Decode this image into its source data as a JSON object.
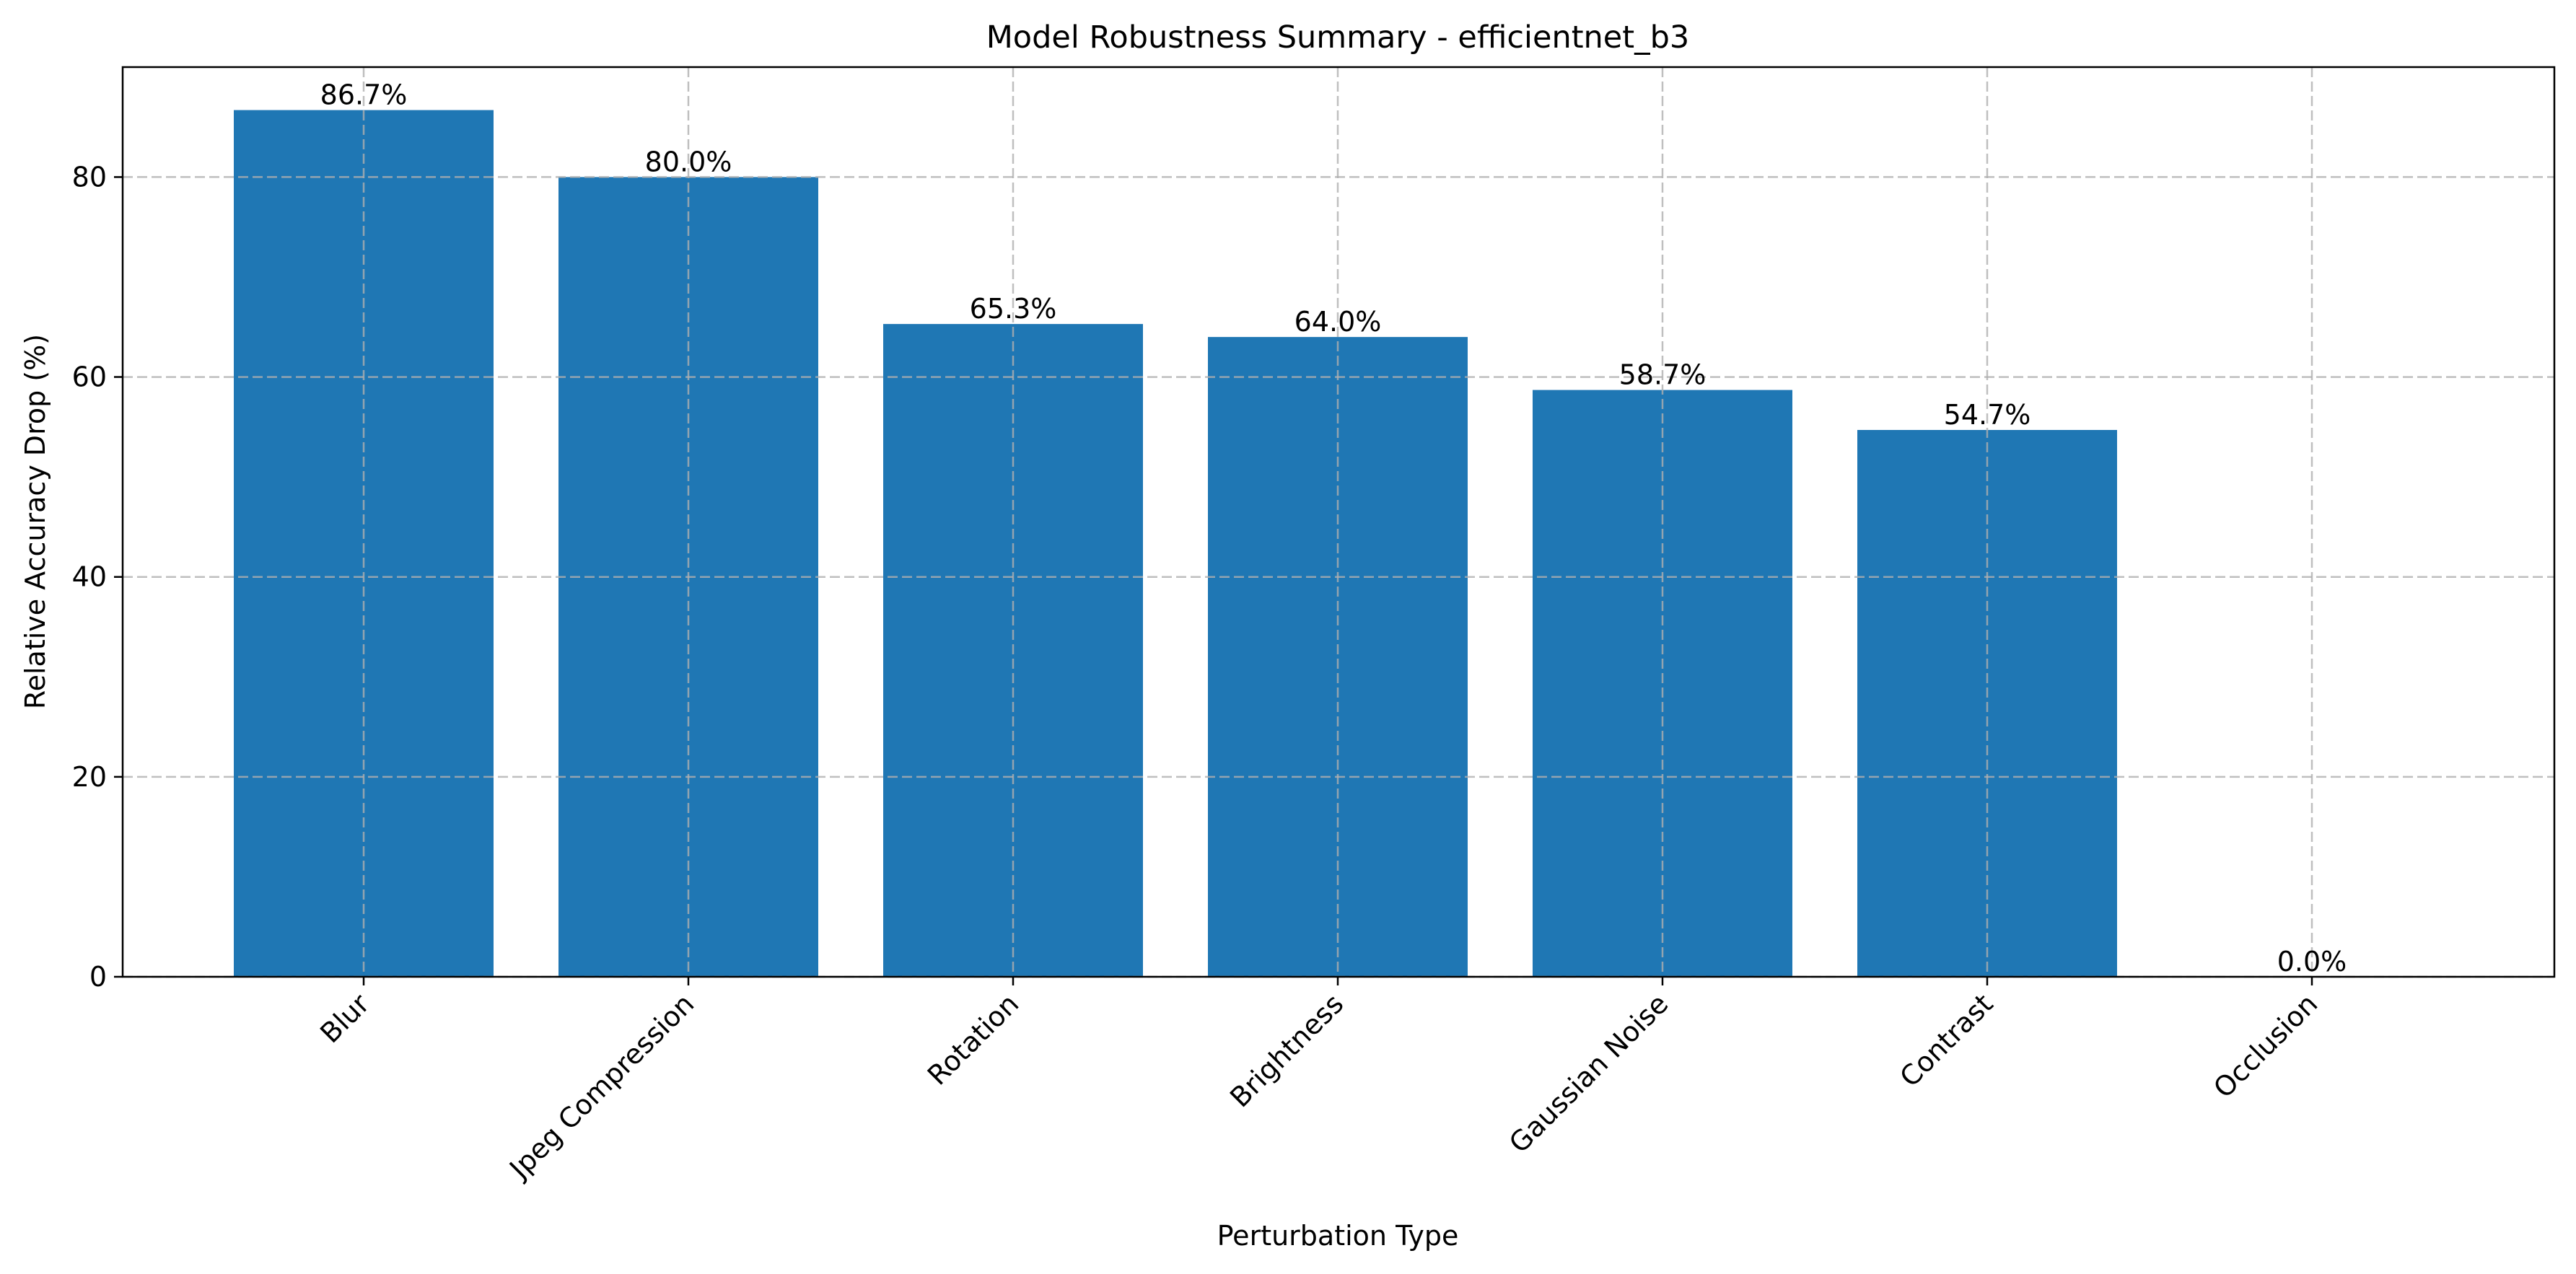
{
  "chart_data": {
    "type": "bar",
    "title": "Model Robustness Summary - efficientnet_b3",
    "xlabel": "Perturbation Type",
    "ylabel": "Relative Accuracy Drop (%)",
    "categories": [
      "Blur",
      "Jpeg Compression",
      "Rotation",
      "Brightness",
      "Gaussian Noise",
      "Contrast",
      "Occlusion"
    ],
    "values": [
      86.7,
      80.0,
      65.3,
      64.0,
      58.7,
      54.7,
      0.0
    ],
    "data_labels": [
      "86.7%",
      "80.0%",
      "65.3%",
      "64.0%",
      "58.7%",
      "54.7%",
      "0.0%"
    ],
    "yticks": [
      0,
      20,
      40,
      60,
      80
    ],
    "ylim": [
      0,
      91
    ],
    "grid": true,
    "bar_color": "#1f77b4",
    "xtick_rotation": 45
  }
}
